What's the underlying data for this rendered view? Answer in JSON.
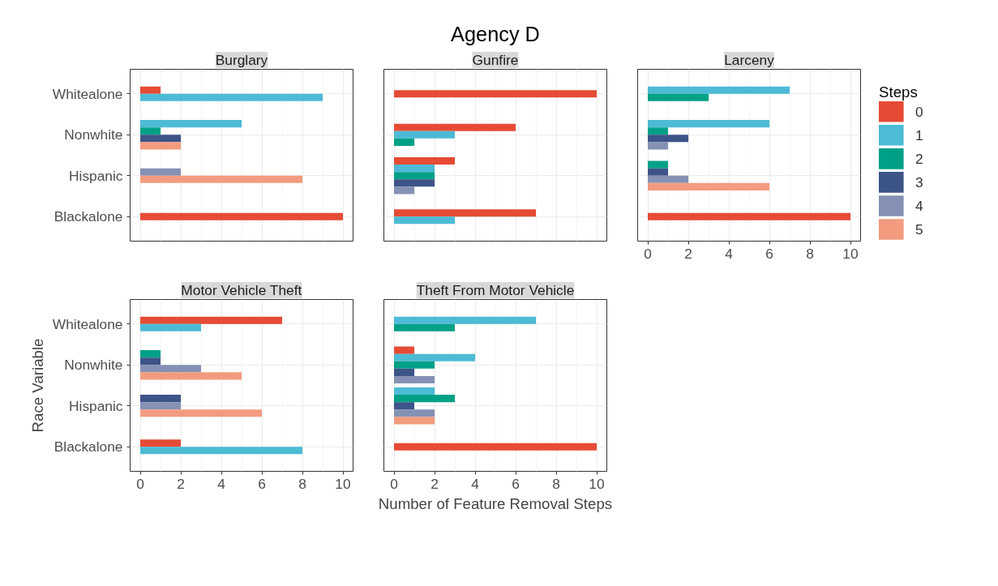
{
  "chart_data": [
    {
      "type": "bar",
      "orientation": "horizontal",
      "title": "Burglary",
      "categories": [
        "Whitealone",
        "Nonwhite",
        "Hispanic",
        "Blackalone"
      ],
      "xlim": [
        -0.5,
        10.5
      ],
      "xticks": [
        0,
        2,
        4,
        6,
        8,
        10
      ],
      "grid": true,
      "tick_labels": "y",
      "series": [
        {
          "color": "#e64b35",
          "values": [
            1,
            null,
            null,
            10
          ]
        },
        {
          "color": "#4dbbd5",
          "values": [
            9,
            5,
            null,
            null
          ]
        },
        {
          "color": "#00a087",
          "values": [
            null,
            1,
            null,
            null
          ]
        },
        {
          "color": "#3c5488",
          "values": [
            null,
            2,
            null,
            null
          ]
        },
        {
          "color": "#8491b4",
          "values": [
            null,
            null,
            2,
            null
          ]
        },
        {
          "color": "#f39b7f",
          "values": [
            null,
            2,
            8,
            null
          ]
        }
      ]
    },
    {
      "type": "bar",
      "orientation": "horizontal",
      "title": "Gunfire",
      "annotations": [
        "Agency D"
      ],
      "categories": [
        null,
        null,
        null,
        null
      ],
      "xlim": [
        -0.5,
        10.5
      ],
      "xticks": [
        0,
        2,
        4,
        6,
        8,
        10
      ],
      "grid": true,
      "tick_labels": false,
      "series": [
        {
          "color": "#e64b35",
          "values": [
            10,
            6,
            3,
            7
          ]
        },
        {
          "color": "#4dbbd5",
          "values": [
            null,
            3,
            2,
            3
          ]
        },
        {
          "color": "#00a087",
          "values": [
            null,
            1,
            2,
            null
          ]
        },
        {
          "color": "#3c5488",
          "values": [
            null,
            null,
            2,
            null
          ]
        },
        {
          "color": "#8491b4",
          "values": [
            null,
            null,
            1,
            null
          ]
        },
        {
          "color": "#f39b7f",
          "values": [
            null,
            null,
            null,
            null
          ]
        }
      ]
    },
    {
      "type": "bar",
      "orientation": "horizontal",
      "title": "Larceny",
      "legend_title": "Steps",
      "legend": "right",
      "categories": [
        null,
        null,
        null,
        null
      ],
      "xlim": [
        -0.5,
        10.5
      ],
      "xticks": [
        0,
        2,
        4,
        6,
        8,
        10
      ],
      "grid": true,
      "tick_labels": "x",
      "series": [
        {
          "name": "0",
          "color": "#e64b35",
          "values": [
            null,
            null,
            null,
            10
          ]
        },
        {
          "name": "1",
          "color": "#4dbbd5",
          "values": [
            7,
            6,
            null,
            null
          ]
        },
        {
          "name": "2",
          "color": "#00a087",
          "values": [
            3,
            1,
            1,
            null
          ]
        },
        {
          "name": "3",
          "color": "#3c5488",
          "values": [
            null,
            2,
            1,
            null
          ]
        },
        {
          "name": "4",
          "color": "#8491b4",
          "values": [
            null,
            1,
            2,
            null
          ]
        },
        {
          "name": "5",
          "color": "#f39b7f",
          "values": [
            null,
            null,
            6,
            null
          ]
        }
      ]
    },
    {
      "type": "bar",
      "orientation": "horizontal",
      "title": "Motor Vehicle Theft",
      "ylabel": "Race Variable",
      "categories": [
        "Whitealone",
        "Nonwhite",
        "Hispanic",
        "Blackalone"
      ],
      "xlim": [
        -0.5,
        10.5
      ],
      "xticks": [
        0,
        2,
        4,
        6,
        8,
        10
      ],
      "grid": true,
      "series": [
        {
          "color": "#e64b35",
          "values": [
            7,
            null,
            null,
            2
          ]
        },
        {
          "color": "#4dbbd5",
          "values": [
            3,
            null,
            null,
            8
          ]
        },
        {
          "color": "#00a087",
          "values": [
            null,
            1,
            null,
            null
          ]
        },
        {
          "color": "#3c5488",
          "values": [
            null,
            1,
            2,
            null
          ]
        },
        {
          "color": "#8491b4",
          "values": [
            null,
            3,
            2,
            null
          ]
        },
        {
          "color": "#f39b7f",
          "values": [
            null,
            5,
            6,
            null
          ]
        }
      ]
    },
    {
      "type": "bar",
      "orientation": "horizontal",
      "title": "Theft From Motor Vehicle",
      "xlabel": "Number of Feature Removal Steps",
      "categories": [
        null,
        null,
        null,
        null
      ],
      "xlim": [
        -0.5,
        10.5
      ],
      "xticks": [
        0,
        2,
        4,
        6,
        8,
        10
      ],
      "grid": true,
      "tick_labels": "x",
      "series": [
        {
          "color": "#e64b35",
          "values": [
            null,
            1,
            null,
            10
          ]
        },
        {
          "color": "#4dbbd5",
          "values": [
            7,
            4,
            2,
            null
          ]
        },
        {
          "color": "#00a087",
          "values": [
            3,
            2,
            3,
            null
          ]
        },
        {
          "color": "#3c5488",
          "values": [
            null,
            1,
            1,
            null
          ]
        },
        {
          "color": "#8491b4",
          "values": [
            null,
            2,
            2,
            null
          ]
        },
        {
          "color": "#f39b7f",
          "values": [
            null,
            null,
            2,
            null
          ]
        }
      ]
    }
  ]
}
